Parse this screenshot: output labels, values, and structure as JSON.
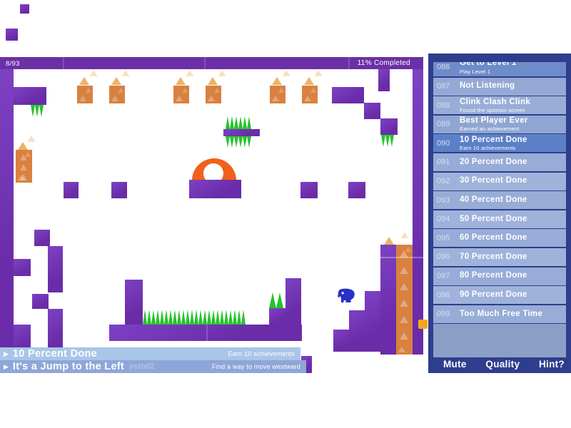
{
  "hud": {
    "counter": "8/93",
    "completed": "11% Completed"
  },
  "icons": {
    "play_arrow": "▶"
  },
  "banners": [
    {
      "title": "10 Percent Done",
      "desc": "Earn 10 achievements"
    },
    {
      "title": "It's a Jump to the Left",
      "author": "jmtb02",
      "desc": "Find a way to move westward"
    }
  ],
  "panel": {
    "achievements": [
      {
        "num": "086",
        "title": "Get to Level 1",
        "subtitle": "Play Level 1"
      },
      {
        "num": "087",
        "title": "Not Listening",
        "subtitle": ""
      },
      {
        "num": "088",
        "title": "Clink Clash Clink",
        "subtitle": "Found the sponsor screen"
      },
      {
        "num": "089",
        "title": "Best Player Ever",
        "subtitle": "Earned an achievement"
      },
      {
        "num": "090",
        "title": "10 Percent Done",
        "subtitle": "Earn 10 achievements"
      },
      {
        "num": "091",
        "title": "20 Percent Done",
        "subtitle": ""
      },
      {
        "num": "092",
        "title": "30 Percent Done",
        "subtitle": ""
      },
      {
        "num": "093",
        "title": "40 Percent Done",
        "subtitle": ""
      },
      {
        "num": "094",
        "title": "50 Percent Done",
        "subtitle": ""
      },
      {
        "num": "095",
        "title": "60 Percent Done",
        "subtitle": ""
      },
      {
        "num": "096",
        "title": "70 Percent Done",
        "subtitle": ""
      },
      {
        "num": "097",
        "title": "80 Percent Done",
        "subtitle": ""
      },
      {
        "num": "098",
        "title": "90 Percent Done",
        "subtitle": ""
      },
      {
        "num": "099",
        "title": "Too Much Free Time",
        "subtitle": ""
      }
    ],
    "footer": {
      "mute": "Mute",
      "quality": "Quality",
      "hint": "Hint?"
    }
  },
  "colors": {
    "purple": "#6a2ca8",
    "purple_light": "#7d41c4",
    "header_purple": "#6b2fa6",
    "navy": "#2f3d8d",
    "spike_green": "#25c32b",
    "box_orange": "#d9813f",
    "dome_orange": "#f1611c",
    "elephant_blue": "#2a2fc5",
    "collect_yellow": "#f0a71f",
    "banner1": "#a9c5e7",
    "banner2": "#8ea6d8",
    "row_selected": "#5c80c7",
    "row_earned": "#6e8cc9"
  }
}
